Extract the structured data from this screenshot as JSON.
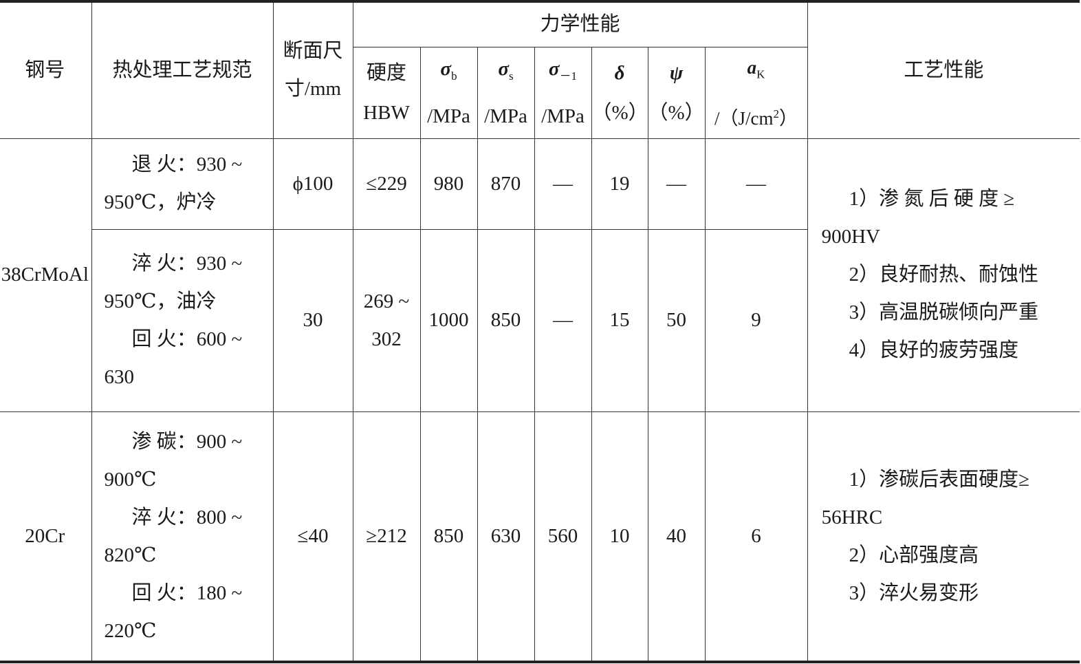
{
  "header": {
    "steel_no": "钢号",
    "heat_treatment": "热处理工艺规范",
    "section_size": [
      "断面尺",
      "寸/mm"
    ],
    "mechanical": "力学性能",
    "process": "工艺性能",
    "cols": [
      {
        "sym": "硬度",
        "unit": "HBW"
      },
      {
        "sym": "σ",
        "sub": "b",
        "unit": "/MPa"
      },
      {
        "sym": "σ",
        "sub": "s",
        "unit": "/MPa"
      },
      {
        "sym": "σ",
        "sub": "－1",
        "unit": "/MPa"
      },
      {
        "sym": "δ",
        "unit": "（%）"
      },
      {
        "sym": "ψ",
        "unit": "（%）"
      },
      {
        "sym": "a",
        "sub": "K",
        "unit": "/（J/cm",
        "sup": "2",
        "unit_end": "）"
      }
    ]
  },
  "rows": [
    {
      "steel": "38CrMoAl",
      "sub": [
        {
          "treatment": [
            {
              "t": "退 火：930 ~",
              "ind": true
            },
            {
              "t": "950℃，炉冷",
              "ind": false
            }
          ],
          "size": "ϕ100",
          "hardness": [
            "≤229"
          ],
          "sb": "980",
          "ss": "870",
          "s1": "—",
          "delta": "19",
          "psi": "—",
          "ak": "—"
        },
        {
          "treatment": [
            {
              "t": "淬 火：930 ~",
              "ind": true
            },
            {
              "t": "950℃，油冷",
              "ind": false
            },
            {
              "t": "回 火：600 ~",
              "ind": true
            },
            {
              "t": "630",
              "ind": false
            }
          ],
          "size": "30",
          "hardness": [
            "269 ~",
            "302"
          ],
          "sb": "1000",
          "ss": "850",
          "s1": "—",
          "delta": "15",
          "psi": "50",
          "ak": "9"
        }
      ],
      "process": [
        {
          "t": "1）渗 氮 后 硬 度 ≥",
          "ind": true
        },
        {
          "t": "900HV",
          "ind": false
        },
        {
          "t": "2）良好耐热、耐蚀性",
          "ind": true
        },
        {
          "t": "3）高温脱碳倾向严重",
          "ind": true
        },
        {
          "t": "4）良好的疲劳强度",
          "ind": true
        }
      ]
    },
    {
      "steel": "20Cr",
      "treatment": [
        {
          "t": "渗 碳：900 ~",
          "ind": true
        },
        {
          "t": "900℃",
          "ind": false
        },
        {
          "t": "淬 火：800 ~",
          "ind": true
        },
        {
          "t": "820℃",
          "ind": false
        },
        {
          "t": "回 火：180 ~",
          "ind": true
        },
        {
          "t": "220℃",
          "ind": false
        }
      ],
      "size": "≤40",
      "hardness": "≥212",
      "sb": "850",
      "ss": "630",
      "s1": "560",
      "delta": "10",
      "psi": "40",
      "ak": "6",
      "process": [
        {
          "t": "1）渗碳后表面硬度≥",
          "ind": true
        },
        {
          "t": "56HRC",
          "ind": false
        },
        {
          "t": "2）心部强度高",
          "ind": true
        },
        {
          "t": "3）淬火易变形",
          "ind": true
        }
      ]
    }
  ]
}
